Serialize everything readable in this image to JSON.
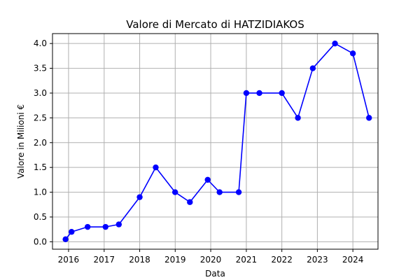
{
  "chart_data": {
    "type": "line",
    "title": "Valore di Mercato di HATZIDIAKOS",
    "xlabel": "Data",
    "ylabel": "Valore in Milioni €",
    "x_ticks": [
      "2016",
      "2017",
      "2018",
      "2019",
      "2020",
      "2021",
      "2022",
      "2023",
      "2024"
    ],
    "y_ticks": [
      "0.0",
      "0.5",
      "1.0",
      "1.5",
      "2.0",
      "2.5",
      "3.0",
      "3.5",
      "4.0"
    ],
    "ylim": [
      -0.15,
      4.2
    ],
    "xlim": [
      "2015-07-20",
      "2024-09-15"
    ],
    "grid": true,
    "series": [
      {
        "color": "#0000ff",
        "marker": "circle",
        "points": [
          {
            "x": "2015-12-01",
            "y": 0.05
          },
          {
            "x": "2016-02-01",
            "y": 0.2
          },
          {
            "x": "2016-07-15",
            "y": 0.3
          },
          {
            "x": "2017-01-15",
            "y": 0.3
          },
          {
            "x": "2017-06-01",
            "y": 0.35
          },
          {
            "x": "2018-01-01",
            "y": 0.9
          },
          {
            "x": "2018-06-15",
            "y": 1.5
          },
          {
            "x": "2018-12-31",
            "y": 1.0
          },
          {
            "x": "2019-06-01",
            "y": 0.8
          },
          {
            "x": "2019-12-01",
            "y": 1.25
          },
          {
            "x": "2020-04-01",
            "y": 1.0
          },
          {
            "x": "2020-10-15",
            "y": 1.0
          },
          {
            "x": "2021-01-01",
            "y": 3.0
          },
          {
            "x": "2021-05-15",
            "y": 3.0
          },
          {
            "x": "2022-01-01",
            "y": 3.0
          },
          {
            "x": "2022-06-15",
            "y": 2.5
          },
          {
            "x": "2022-11-15",
            "y": 3.5
          },
          {
            "x": "2023-07-01",
            "y": 4.0
          },
          {
            "x": "2024-01-01",
            "y": 3.8
          },
          {
            "x": "2024-06-15",
            "y": 2.5
          }
        ]
      }
    ]
  }
}
